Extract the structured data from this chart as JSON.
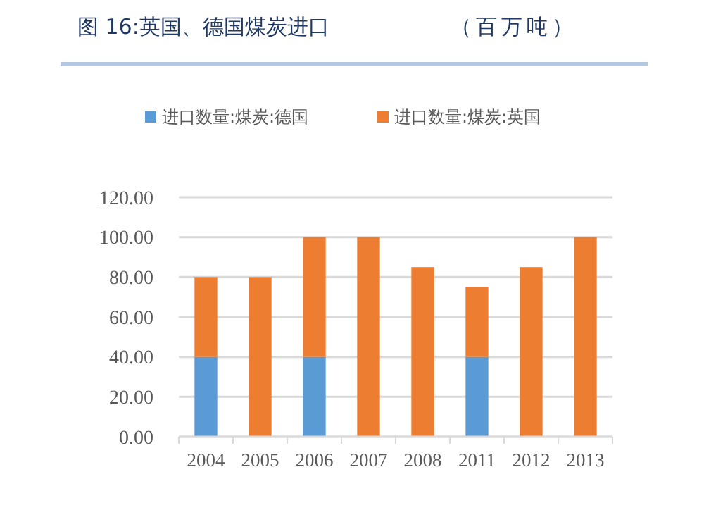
{
  "chart_data": {
    "type": "bar",
    "title": "图 16:英国、德国煤炭进口",
    "subtitle": "（百万吨）",
    "categories": [
      "2004",
      "2005",
      "2006",
      "2007",
      "2008",
      "2011",
      "2012",
      "2013"
    ],
    "stacked": true,
    "series": [
      {
        "name": "进口数量:煤炭:德国",
        "color": "#5b9bd5",
        "values": [
          40,
          null,
          40,
          null,
          null,
          40,
          null,
          null
        ]
      },
      {
        "name": "进口数量:煤炭:英国",
        "color": "#ed7d31",
        "values": [
          40,
          80,
          60,
          100,
          85,
          35,
          85,
          100
        ]
      }
    ],
    "ylim": [
      0,
      120
    ],
    "yticks": [
      {
        "value": 0,
        "label": "0.00"
      },
      {
        "value": 20,
        "label": "20.00"
      },
      {
        "value": 40,
        "label": "40.00"
      },
      {
        "value": 60,
        "label": "60.00"
      },
      {
        "value": 80,
        "label": "80.00"
      },
      {
        "value": 100,
        "label": "100.00"
      },
      {
        "value": 120,
        "label": "120.00"
      }
    ],
    "grid": "y",
    "legend": "top"
  }
}
